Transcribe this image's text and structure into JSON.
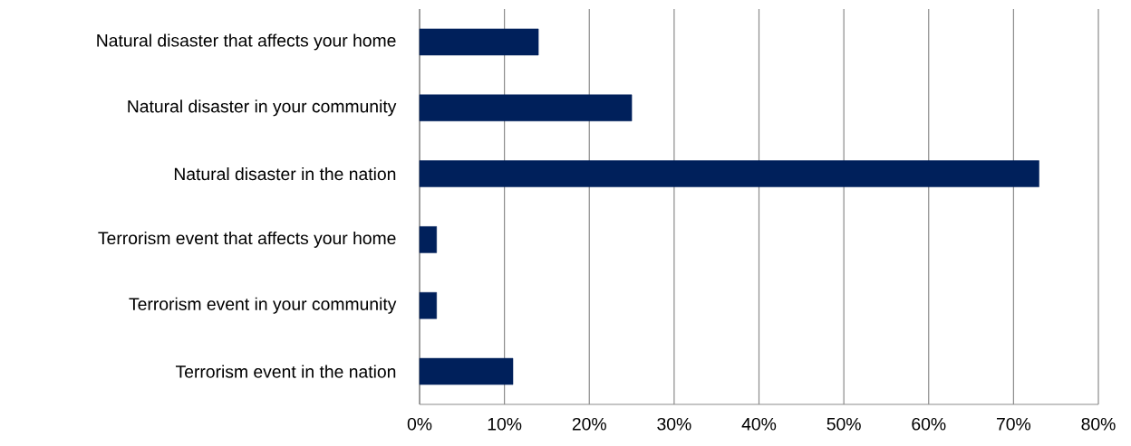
{
  "chart_data": {
    "type": "bar",
    "orientation": "horizontal",
    "categories": [
      "Natural disaster that affects your home",
      "Natural disaster in your community",
      "Natural disaster in the nation",
      "Terrorism event that affects your home",
      "Terrorism event in your community",
      "Terrorism event in the nation"
    ],
    "values": [
      14,
      25,
      73,
      2,
      2,
      11
    ],
    "color": "#00205b",
    "xlim": [
      0,
      80
    ],
    "xticks": [
      {
        "value": 0,
        "label": "0%"
      },
      {
        "value": 10,
        "label": "10%"
      },
      {
        "value": 20,
        "label": "20%"
      },
      {
        "value": 30,
        "label": "30%"
      },
      {
        "value": 40,
        "label": "40%"
      },
      {
        "value": 50,
        "label": "50%"
      },
      {
        "value": 60,
        "label": "60%"
      },
      {
        "value": 70,
        "label": "70%"
      },
      {
        "value": 80,
        "label": "80%"
      }
    ],
    "grid": "x"
  }
}
